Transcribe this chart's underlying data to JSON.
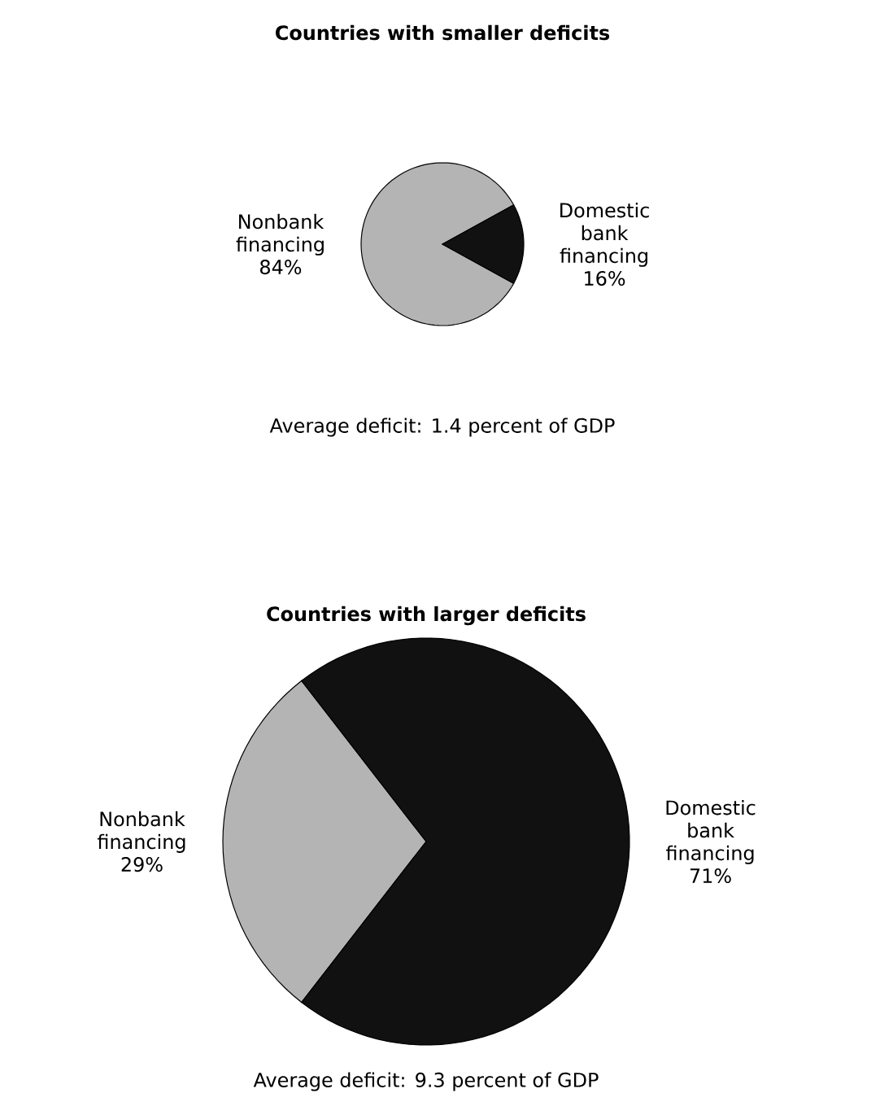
{
  "chart_data": [
    {
      "type": "pie",
      "title": "Countries with smaller deficits",
      "categories": [
        "Nonbank financing",
        "Domestic bank financing"
      ],
      "values": [
        84,
        16
      ],
      "value_labels": [
        "84%",
        "16%"
      ],
      "colors": [
        "#b4b4b4",
        "#111111"
      ],
      "annotations": [
        "Average deficit: 1.4 percent of GDP"
      ]
    },
    {
      "type": "pie",
      "title": "Countries with larger deficits",
      "categories": [
        "Nonbank financing",
        "Domestic bank financing"
      ],
      "values": [
        29,
        71
      ],
      "value_labels": [
        "29%",
        "71%"
      ],
      "colors": [
        "#b4b4b4",
        "#111111"
      ],
      "annotations": [
        "Average deficit: 9.3 percent of GDP"
      ]
    }
  ]
}
